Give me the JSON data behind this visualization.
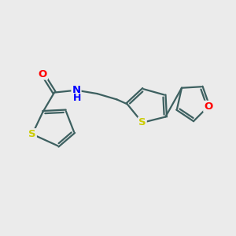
{
  "bg_color": "#ebebeb",
  "bond_color": "#3d6060",
  "bond_width": 1.6,
  "dbo": 0.055,
  "atom_colors": {
    "S": "#cccc00",
    "O": "#ff0000",
    "N": "#0000ff"
  },
  "font_size": 9.5,
  "figsize": [
    3.0,
    3.0
  ],
  "dpi": 100,
  "xlim": [
    0,
    10
  ],
  "ylim": [
    2,
    8
  ]
}
